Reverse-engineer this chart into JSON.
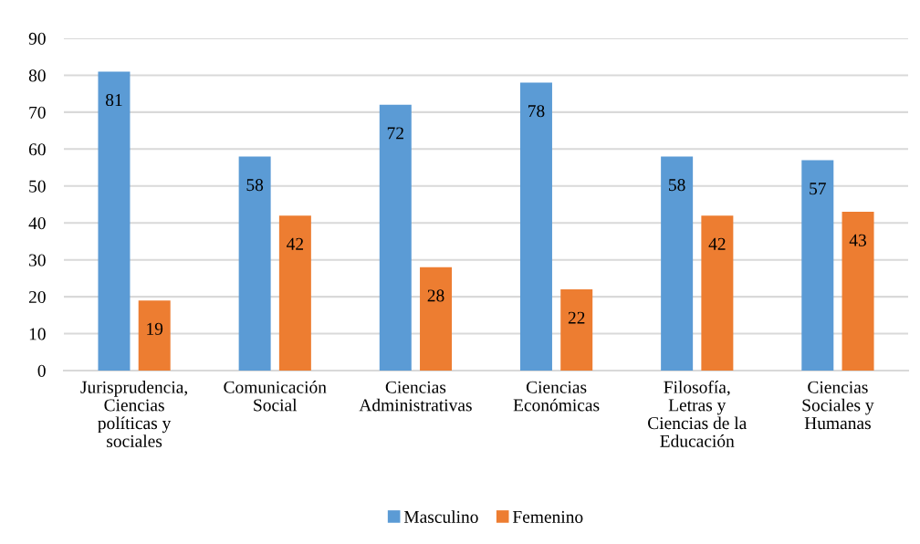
{
  "chart_data": {
    "type": "bar",
    "categories": [
      "Jurisprudencia,\nCiencias\npolíticas y\nsociales",
      "Comunicación\nSocial",
      "Ciencias\nAdministrativas",
      "Ciencias\nEconómicas",
      "Filosofía,\nLetras y\nCiencias de la\nEducación",
      "Ciencias\nSociales y\nHumanas"
    ],
    "series": [
      {
        "name": "Masculino",
        "color": "#5b9bd5",
        "values": [
          81,
          58,
          72,
          78,
          58,
          57
        ]
      },
      {
        "name": "Femenino",
        "color": "#ed7d31",
        "values": [
          19,
          42,
          28,
          22,
          42,
          43
        ]
      }
    ],
    "ylim": [
      0,
      90
    ],
    "yticks": [
      0,
      10,
      20,
      30,
      40,
      50,
      60,
      70,
      80,
      90
    ],
    "grid": "y",
    "legend": "bottom",
    "data_labels": true
  }
}
